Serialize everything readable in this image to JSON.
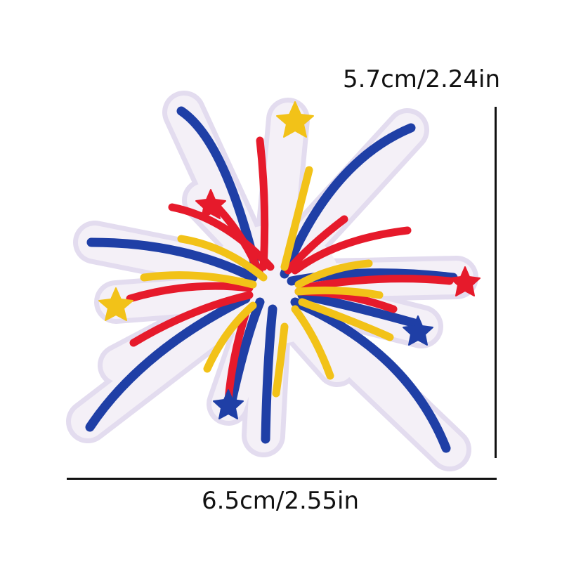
{
  "product": {
    "height_label": "5.7cm/2.24in",
    "width_label": "6.5cm/2.55in"
  },
  "colors": {
    "blue": "#1f3fa6",
    "red": "#e61a2b",
    "yellow": "#f2c218",
    "backing": "#f4f0f7",
    "backing_edge": "#e3dcef",
    "rule": "#111111"
  },
  "icons": {
    "patch": "firework-embroidered-patch-image",
    "stars": "star-icon"
  }
}
